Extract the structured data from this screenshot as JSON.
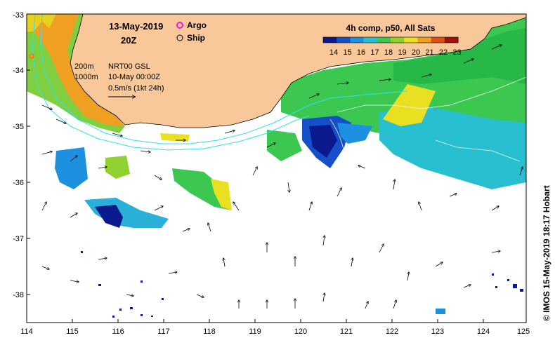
{
  "map": {
    "date_title": "13-May-2019",
    "time_title": "20Z",
    "legend_argo": "Argo",
    "legend_ship": "Ship",
    "argo_color": "#e020e0",
    "info_lines": [
      "NRT00 GSL",
      "10-May 00:00Z",
      "0.5m/s (1kt 24h)"
    ],
    "contour_labels": [
      "200m",
      "1000m"
    ],
    "colorbar_title": "4h comp, p50, All Sats",
    "colorbar_ticks": [
      "14",
      "15",
      "16",
      "17",
      "18",
      "19",
      "20",
      "21",
      "22",
      "23"
    ],
    "colorbar_range": [
      14,
      23
    ],
    "colorbar_colors": [
      "#0a1a8c",
      "#1550c8",
      "#1e90e0",
      "#28c0d0",
      "#3cc850",
      "#90d030",
      "#e8e020",
      "#f0a020",
      "#e05010",
      "#a01010"
    ],
    "lon_ticks": [
      "114",
      "115",
      "116",
      "117",
      "118",
      "119",
      "120",
      "121",
      "122",
      "123",
      "124",
      "125"
    ],
    "lat_ticks": [
      "-33",
      "-34",
      "-35",
      "-36",
      "-37",
      "-38"
    ],
    "lon_range": [
      114,
      125
    ],
    "lat_range": [
      -38.5,
      -33
    ],
    "land_color": "#f8c89a",
    "contour_color": "#30e0f0",
    "credit": "© IMOS 15-May-2019 18:17 Hobart"
  }
}
